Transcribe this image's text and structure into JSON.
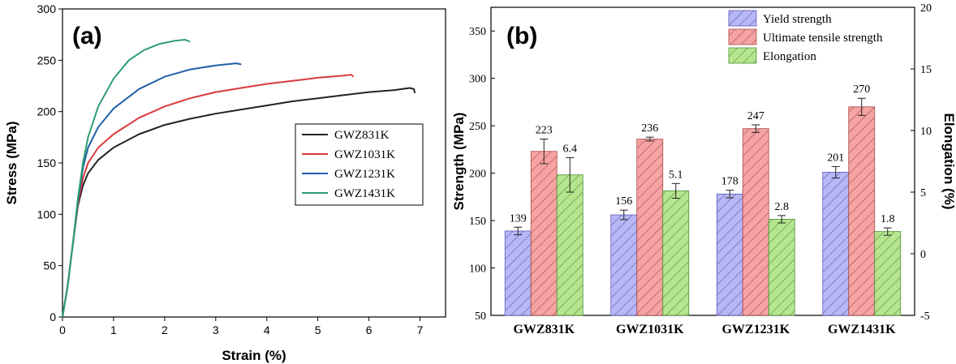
{
  "chart_data": [
    {
      "type": "line",
      "panel_label": "(a)",
      "xlabel": "Strain (%)",
      "ylabel": "Stress (MPa)",
      "xlim": [
        0,
        7.5
      ],
      "ylim": [
        0,
        300
      ],
      "xticks": [
        0,
        1,
        2,
        3,
        4,
        5,
        6,
        7
      ],
      "yticks": [
        0,
        50,
        100,
        150,
        200,
        250,
        300
      ],
      "grid": false,
      "legend_position": "center-right",
      "series": [
        {
          "name": "GWZ831K",
          "color": "#222222",
          "points": [
            [
              0,
              0
            ],
            [
              0.1,
              30
            ],
            [
              0.2,
              70
            ],
            [
              0.3,
              108
            ],
            [
              0.4,
              128
            ],
            [
              0.5,
              140
            ],
            [
              0.7,
              153
            ],
            [
              1.0,
              165
            ],
            [
              1.5,
              178
            ],
            [
              2.0,
              187
            ],
            [
              2.5,
              193
            ],
            [
              3.0,
              198
            ],
            [
              3.5,
              202
            ],
            [
              4.0,
              206
            ],
            [
              4.5,
              210
            ],
            [
              5.0,
              213
            ],
            [
              5.5,
              216
            ],
            [
              6.0,
              219
            ],
            [
              6.5,
              221
            ],
            [
              6.8,
              223
            ],
            [
              6.88,
              222
            ],
            [
              6.9,
              218
            ]
          ]
        },
        {
          "name": "GWZ1031K",
          "color": "#d93a3a",
          "points": [
            [
              0,
              0
            ],
            [
              0.1,
              30
            ],
            [
              0.2,
              70
            ],
            [
              0.3,
              110
            ],
            [
              0.4,
              135
            ],
            [
              0.5,
              150
            ],
            [
              0.7,
              165
            ],
            [
              1.0,
              178
            ],
            [
              1.5,
              194
            ],
            [
              2.0,
              205
            ],
            [
              2.5,
              213
            ],
            [
              3.0,
              219
            ],
            [
              3.5,
              223
            ],
            [
              4.0,
              227
            ],
            [
              4.5,
              230
            ],
            [
              5.0,
              233
            ],
            [
              5.5,
              235
            ],
            [
              5.65,
              236
            ],
            [
              5.7,
              234
            ]
          ]
        },
        {
          "name": "GWZ1231K",
          "color": "#1f5fa8",
          "points": [
            [
              0,
              0
            ],
            [
              0.1,
              30
            ],
            [
              0.2,
              70
            ],
            [
              0.3,
              112
            ],
            [
              0.4,
              145
            ],
            [
              0.5,
              165
            ],
            [
              0.7,
              185
            ],
            [
              1.0,
              203
            ],
            [
              1.5,
              222
            ],
            [
              2.0,
              234
            ],
            [
              2.5,
              241
            ],
            [
              3.0,
              245
            ],
            [
              3.4,
              247
            ],
            [
              3.5,
              246
            ]
          ]
        },
        {
          "name": "GWZ1431K",
          "color": "#2e9e6f",
          "points": [
            [
              0,
              0
            ],
            [
              0.1,
              30
            ],
            [
              0.2,
              70
            ],
            [
              0.3,
              115
            ],
            [
              0.4,
              150
            ],
            [
              0.5,
              175
            ],
            [
              0.7,
              205
            ],
            [
              1.0,
              232
            ],
            [
              1.3,
              250
            ],
            [
              1.6,
              260
            ],
            [
              1.9,
              266
            ],
            [
              2.2,
              269
            ],
            [
              2.4,
              270
            ],
            [
              2.5,
              268
            ]
          ]
        }
      ]
    },
    {
      "type": "bar",
      "panel_label": "(b)",
      "categories": [
        "GWZ831K",
        "GWZ1031K",
        "GWZ1231K",
        "GWZ1431K"
      ],
      "ylabel": "Strength (MPa)",
      "y2label": "Elongation (%)",
      "ylim": [
        50,
        375
      ],
      "yticks": [
        50,
        100,
        150,
        200,
        250,
        300,
        350
      ],
      "y2lim": [
        -5,
        20
      ],
      "y2ticks": [
        -5,
        0,
        5,
        10,
        15,
        20
      ],
      "legend_position": "top-right",
      "series": [
        {
          "name": "Yield strength",
          "axis": "left",
          "color": "#b7b7f5",
          "hatch_color": "#5a5ab4",
          "values": [
            139,
            156,
            178,
            201
          ],
          "labels": [
            "139",
            "156",
            "178",
            "201"
          ],
          "errors": [
            4,
            5,
            4,
            6
          ]
        },
        {
          "name": "Ultimate tensile strength",
          "axis": "left",
          "color": "#f5a3a3",
          "hatch_color": "#a84848",
          "values": [
            223,
            236,
            247,
            270
          ],
          "labels": [
            "223",
            "236",
            "247",
            "270"
          ],
          "errors": [
            13,
            2,
            4,
            9
          ]
        },
        {
          "name": "Elongation",
          "axis": "right",
          "color": "#b6e58f",
          "hatch_color": "#4c8f34",
          "values": [
            6.4,
            5.1,
            2.8,
            1.8
          ],
          "labels": [
            "6.4",
            "5.1",
            "2.8",
            "1.8"
          ],
          "errors": [
            1.4,
            0.6,
            0.3,
            0.3
          ]
        }
      ]
    }
  ]
}
